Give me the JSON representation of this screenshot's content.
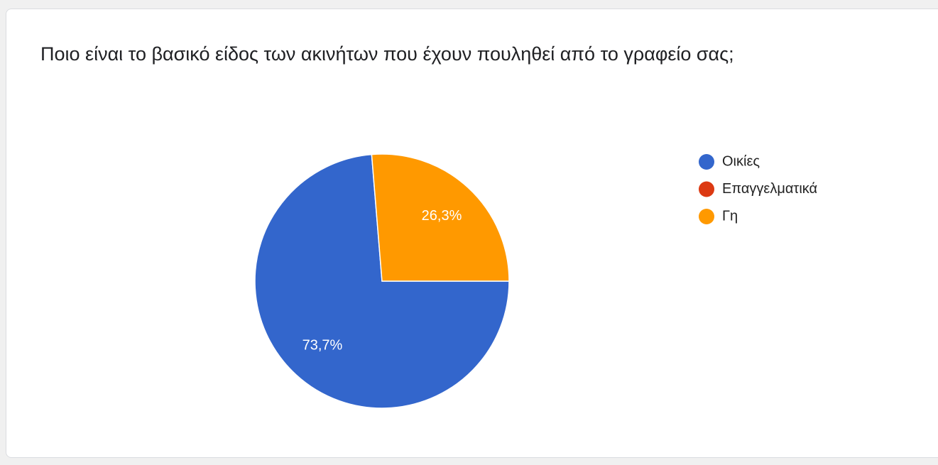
{
  "chart_data": {
    "type": "pie",
    "title": "Ποιο είναι το βασικό είδος των ακινήτων που έχουν πουληθεί από το γραφείο σας;",
    "categories": [
      "Οικίες",
      "Επαγγελματικά",
      "Γη"
    ],
    "values": [
      73.7,
      0,
      26.3
    ],
    "value_labels": [
      "73,7%",
      null,
      "26,3%"
    ],
    "colors": [
      "#3366cc",
      "#dc3912",
      "#ff9900"
    ],
    "legend": "right"
  }
}
